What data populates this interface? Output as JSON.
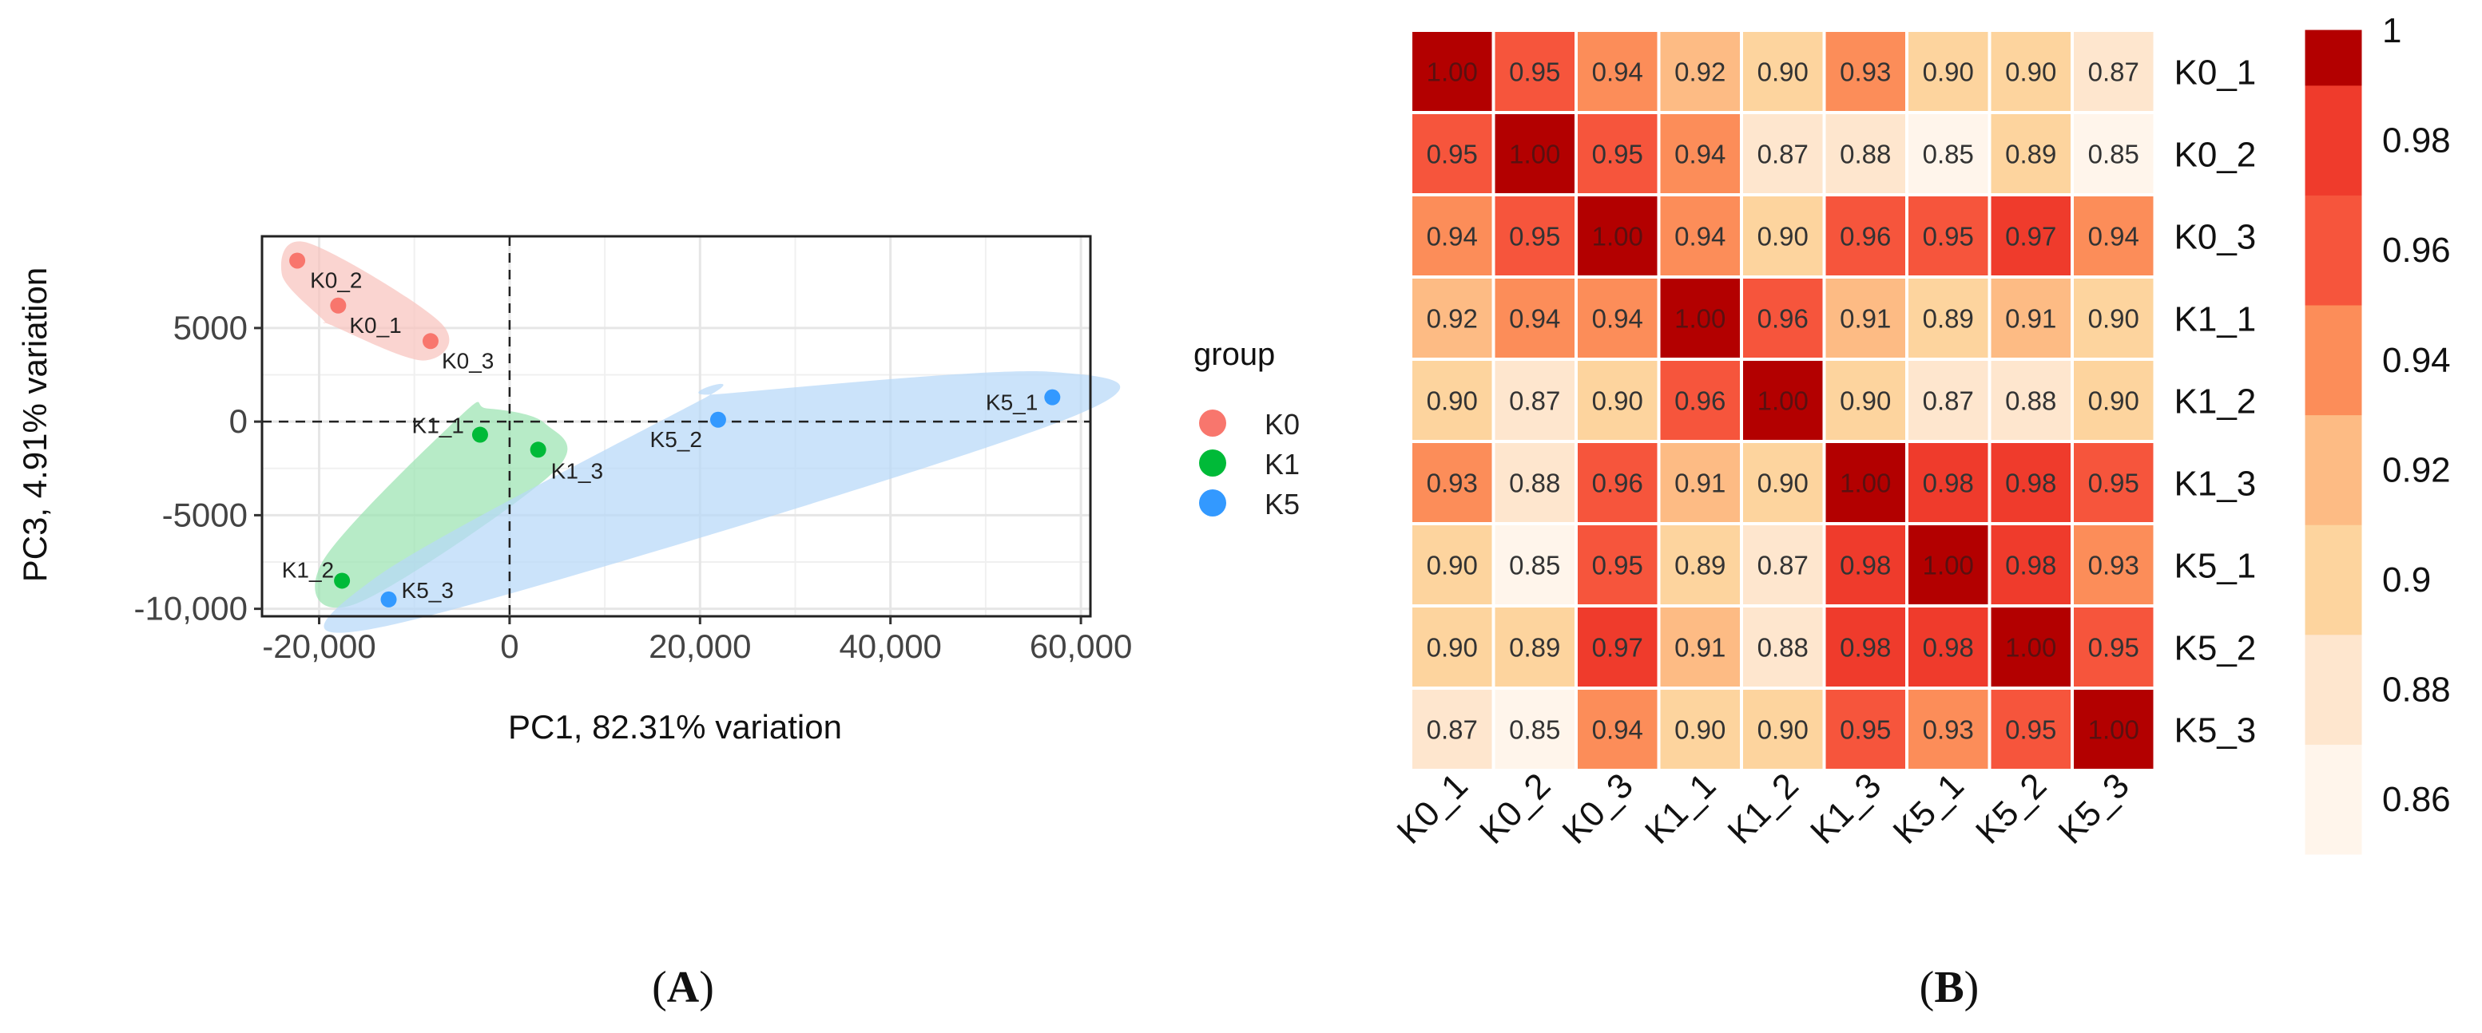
{
  "panel_labels": {
    "a": {
      "open": "(",
      "letter": "A",
      "close": ")"
    },
    "b": {
      "open": "(",
      "letter": "B",
      "close": ")"
    }
  },
  "chart_data": [
    {
      "type": "scatter",
      "title": "",
      "xlabel": "PC1, 82.31% variation",
      "ylabel": "PC3, 4.91% variation",
      "xlim": [
        -26000,
        61000
      ],
      "ylim": [
        -10400,
        9900
      ],
      "xticks": [
        {
          "value": -20000,
          "label": "-20,000"
        },
        {
          "value": 0,
          "label": "0"
        },
        {
          "value": 20000,
          "label": "20,000"
        },
        {
          "value": 40000,
          "label": "40,000"
        },
        {
          "value": 60000,
          "label": "60,000"
        }
      ],
      "yticks": [
        {
          "value": 5000,
          "label": "5000"
        },
        {
          "value": 0,
          "label": "0"
        },
        {
          "value": -5000,
          "label": "-5000"
        },
        {
          "value": -10000,
          "label": "-10,000"
        }
      ],
      "grid": true,
      "reference_lines": {
        "x": 0,
        "y": 0,
        "style": "dashed"
      },
      "legend": {
        "title": "group",
        "position": "right",
        "entries": [
          {
            "name": "K0",
            "color": "#F8766D"
          },
          {
            "name": "K1",
            "color": "#00BA38"
          },
          {
            "name": "K5",
            "color": "#3399FF"
          }
        ]
      },
      "series": [
        {
          "name": "K0",
          "color": "#F8766D",
          "hull_color": "#F8C4BE",
          "points": [
            {
              "label": "K0_1",
              "x": -18000,
              "y": 6200
            },
            {
              "label": "K0_2",
              "x": -22300,
              "y": 8600
            },
            {
              "label": "K0_3",
              "x": -8300,
              "y": 4300
            }
          ]
        },
        {
          "name": "K1",
          "color": "#00BA38",
          "hull_color": "#9BE3B2",
          "points": [
            {
              "label": "K1_1",
              "x": -3100,
              "y": -700
            },
            {
              "label": "K1_2",
              "x": -17600,
              "y": -8500
            },
            {
              "label": "K1_3",
              "x": 3000,
              "y": -1500
            }
          ]
        },
        {
          "name": "K5",
          "color": "#3399FF",
          "hull_color": "#B7D8F8",
          "points": [
            {
              "label": "K5_1",
              "x": 57000,
              "y": 1300
            },
            {
              "label": "K5_2",
              "x": 21900,
              "y": 100
            },
            {
              "label": "K5_3",
              "x": -12700,
              "y": -9500
            }
          ]
        }
      ]
    },
    {
      "type": "heatmap",
      "title": "",
      "rows": [
        "K0_1",
        "K0_2",
        "K0_3",
        "K1_1",
        "K1_2",
        "K1_3",
        "K5_1",
        "K5_2",
        "K5_3"
      ],
      "columns": [
        "K0_1",
        "K0_2",
        "K0_3",
        "K1_1",
        "K1_2",
        "K1_3",
        "K5_1",
        "K5_2",
        "K5_3"
      ],
      "values": [
        [
          1.0,
          0.95,
          0.94,
          0.92,
          0.9,
          0.93,
          0.9,
          0.9,
          0.87
        ],
        [
          0.95,
          1.0,
          0.95,
          0.94,
          0.87,
          0.88,
          0.85,
          0.89,
          0.85
        ],
        [
          0.94,
          0.95,
          1.0,
          0.94,
          0.9,
          0.96,
          0.95,
          0.97,
          0.94
        ],
        [
          0.92,
          0.94,
          0.94,
          1.0,
          0.96,
          0.91,
          0.89,
          0.91,
          0.9
        ],
        [
          0.9,
          0.87,
          0.9,
          0.96,
          1.0,
          0.9,
          0.87,
          0.88,
          0.9
        ],
        [
          0.93,
          0.88,
          0.96,
          0.91,
          0.9,
          1.0,
          0.98,
          0.98,
          0.95
        ],
        [
          0.9,
          0.85,
          0.95,
          0.89,
          0.87,
          0.98,
          1.0,
          0.98,
          0.93
        ],
        [
          0.9,
          0.89,
          0.97,
          0.91,
          0.88,
          0.98,
          0.98,
          1.0,
          0.95
        ],
        [
          0.87,
          0.85,
          0.94,
          0.9,
          0.9,
          0.95,
          0.93,
          0.95,
          1.0
        ]
      ],
      "colorbar": {
        "range": [
          0.85,
          1.0
        ],
        "bands": [
          {
            "from": 0.85,
            "to": 0.87,
            "color": "#FFF5EB"
          },
          {
            "from": 0.87,
            "to": 0.89,
            "color": "#FEE6CE"
          },
          {
            "from": 0.89,
            "to": 0.91,
            "color": "#FDD49E"
          },
          {
            "from": 0.91,
            "to": 0.93,
            "color": "#FDBB84"
          },
          {
            "from": 0.93,
            "to": 0.95,
            "color": "#FC8D59"
          },
          {
            "from": 0.95,
            "to": 0.97,
            "color": "#F6553C"
          },
          {
            "from": 0.97,
            "to": 0.99,
            "color": "#EF3B2C"
          },
          {
            "from": 0.99,
            "to": 1.0,
            "color": "#B30000"
          }
        ],
        "ticks": [
          {
            "value": 1.0,
            "label": "1"
          },
          {
            "value": 0.98,
            "label": "0.98"
          },
          {
            "value": 0.96,
            "label": "0.96"
          },
          {
            "value": 0.94,
            "label": "0.94"
          },
          {
            "value": 0.92,
            "label": "0.92"
          },
          {
            "value": 0.9,
            "label": "0.9"
          },
          {
            "value": 0.88,
            "label": "0.88"
          },
          {
            "value": 0.86,
            "label": "0.86"
          }
        ]
      }
    }
  ]
}
